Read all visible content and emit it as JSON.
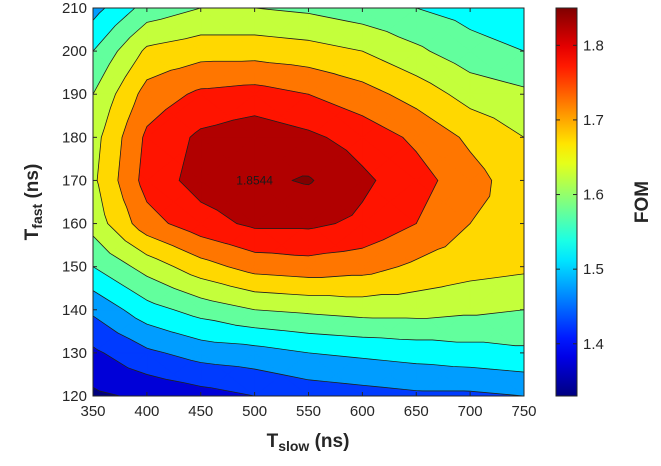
{
  "chart_data": {
    "type": "heatmap",
    "subtype": "filled-contour",
    "xlabel_main": "T",
    "xlabel_sub": "slow",
    "xlabel_unit": " (ns)",
    "ylabel_main": "T",
    "ylabel_sub": "fast",
    "ylabel_unit": " (ns)",
    "colorbar_label": "FOM",
    "colormap": "jet",
    "x": [
      350,
      400,
      450,
      500,
      550,
      600,
      650,
      700,
      750
    ],
    "y": [
      120,
      130,
      140,
      150,
      160,
      170,
      180,
      190,
      200,
      210
    ],
    "x_tick_labels": [
      "350",
      "400",
      "450",
      "500",
      "550",
      "600",
      "650",
      "700",
      "750"
    ],
    "y_tick_labels": [
      "120",
      "130",
      "140",
      "150",
      "160",
      "170",
      "180",
      "190",
      "200",
      "210"
    ],
    "xlim": [
      350,
      750
    ],
    "ylim": [
      120,
      210
    ],
    "color_range": [
      1.33,
      1.85
    ],
    "colorbar_ticks": [
      1.4,
      1.5,
      1.6,
      1.7,
      1.8
    ],
    "colorbar_tick_labels": [
      "1.4",
      "1.5",
      "1.6",
      "1.7",
      "1.8"
    ],
    "contour_levels": [
      1.35,
      1.4,
      1.45,
      1.5,
      1.55,
      1.6,
      1.65,
      1.7,
      1.75,
      1.8,
      1.85
    ],
    "z": [
      [
        1.34,
        1.36,
        1.38,
        1.4,
        1.42,
        1.43,
        1.44,
        1.44,
        1.45
      ],
      [
        1.39,
        1.44,
        1.47,
        1.48,
        1.5,
        1.51,
        1.52,
        1.53,
        1.54
      ],
      [
        1.46,
        1.53,
        1.57,
        1.6,
        1.61,
        1.62,
        1.62,
        1.61,
        1.6
      ],
      [
        1.55,
        1.62,
        1.68,
        1.72,
        1.73,
        1.72,
        1.69,
        1.67,
        1.66
      ],
      [
        1.62,
        1.73,
        1.78,
        1.81,
        1.81,
        1.79,
        1.75,
        1.7,
        1.68
      ],
      [
        1.64,
        1.77,
        1.82,
        1.84,
        1.8544,
        1.81,
        1.77,
        1.72,
        1.67
      ],
      [
        1.63,
        1.76,
        1.81,
        1.83,
        1.81,
        1.78,
        1.74,
        1.69,
        1.65
      ],
      [
        1.6,
        1.72,
        1.76,
        1.77,
        1.75,
        1.72,
        1.68,
        1.63,
        1.61
      ],
      [
        1.55,
        1.66,
        1.68,
        1.68,
        1.67,
        1.65,
        1.61,
        1.57,
        1.55
      ],
      [
        1.48,
        1.57,
        1.6,
        1.6,
        1.59,
        1.57,
        1.55,
        1.53,
        1.51
      ]
    ],
    "annotations": [
      {
        "text": "1.8544",
        "x": 500,
        "y": 170
      }
    ]
  }
}
